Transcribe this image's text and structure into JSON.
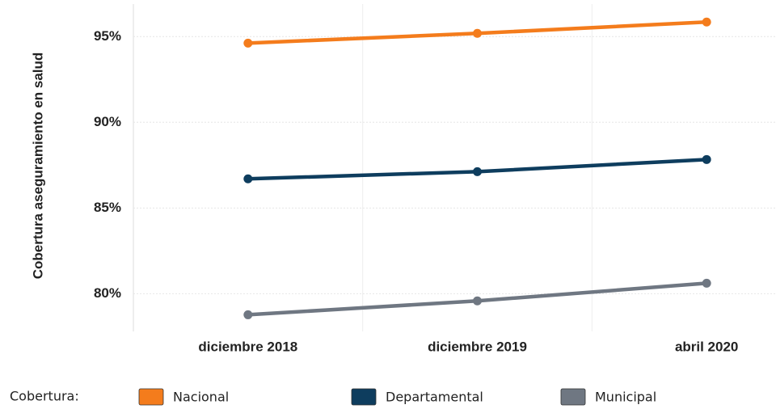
{
  "chart_data": {
    "type": "line",
    "y_label": "Cobertura aseguramiento en salud",
    "categories": [
      "diciembre 2018",
      "diciembre 2019",
      "abril 2020"
    ],
    "series": [
      {
        "name": "Nacional",
        "color": "#f47c1c",
        "values": [
          94.62,
          95.19,
          95.85
        ]
      },
      {
        "name": "Departamental",
        "color": "#0e3d5e",
        "values": [
          86.7,
          87.12,
          87.83
        ]
      },
      {
        "name": "Municipal",
        "color": "#6f7782",
        "values": [
          78.77,
          79.58,
          80.61
        ]
      }
    ],
    "ylim": [
      77.8,
      96.9
    ],
    "yticks": [
      {
        "value": 80,
        "label": "80%"
      },
      {
        "value": 85,
        "label": "85%"
      },
      {
        "value": 90,
        "label": "90%"
      },
      {
        "value": 95,
        "label": "95%"
      }
    ],
    "grid": true,
    "legend_title": "Cobertura:",
    "legend_position": "bottom"
  }
}
